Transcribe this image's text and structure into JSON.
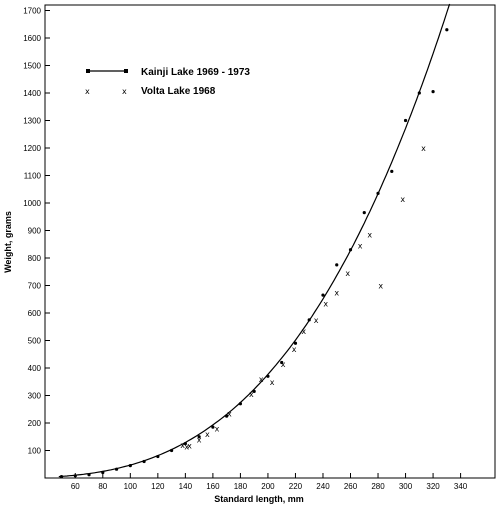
{
  "chart_data": {
    "type": "scatter",
    "title": "",
    "xlabel": "Standard length, mm",
    "ylabel": "Weight, grams",
    "xlim": [
      38,
      365
    ],
    "ylim": [
      0,
      1720
    ],
    "x_ticks": [
      60,
      80,
      100,
      120,
      140,
      160,
      180,
      200,
      220,
      240,
      260,
      280,
      300,
      320,
      340
    ],
    "y_ticks": [
      100,
      200,
      300,
      400,
      500,
      600,
      700,
      800,
      900,
      1000,
      1100,
      1200,
      1300,
      1400,
      1500,
      1600,
      1700
    ],
    "legend_position": "top-left",
    "series": [
      {
        "name": "Kainji Lake 1969 - 1973",
        "marker": "dot-with-fitted-curve",
        "points": [
          [
            50,
            5
          ],
          [
            60,
            8
          ],
          [
            70,
            12
          ],
          [
            80,
            20
          ],
          [
            90,
            32
          ],
          [
            100,
            45
          ],
          [
            110,
            60
          ],
          [
            120,
            78
          ],
          [
            130,
            100
          ],
          [
            140,
            125
          ],
          [
            150,
            150
          ],
          [
            160,
            185
          ],
          [
            170,
            225
          ],
          [
            180,
            270
          ],
          [
            190,
            315
          ],
          [
            200,
            370
          ],
          [
            210,
            420
          ],
          [
            220,
            490
          ],
          [
            230,
            575
          ],
          [
            240,
            665
          ],
          [
            250,
            775
          ],
          [
            260,
            830
          ],
          [
            270,
            965
          ],
          [
            280,
            1035
          ],
          [
            290,
            1115
          ],
          [
            300,
            1300
          ],
          [
            310,
            1400
          ],
          [
            320,
            1405
          ],
          [
            330,
            1630
          ]
        ]
      },
      {
        "name": "Volta Lake 1968",
        "marker": "x",
        "points": [
          [
            138,
            120
          ],
          [
            141,
            115
          ],
          [
            143,
            118
          ],
          [
            150,
            140
          ],
          [
            156,
            160
          ],
          [
            163,
            180
          ],
          [
            172,
            235
          ],
          [
            188,
            305
          ],
          [
            195,
            360
          ],
          [
            203,
            350
          ],
          [
            211,
            415
          ],
          [
            219,
            470
          ],
          [
            226,
            535
          ],
          [
            235,
            575
          ],
          [
            242,
            635
          ],
          [
            250,
            675
          ],
          [
            258,
            745
          ],
          [
            267,
            845
          ],
          [
            274,
            885
          ],
          [
            282,
            700
          ],
          [
            298,
            1015
          ],
          [
            313,
            1200
          ]
        ]
      }
    ],
    "fit_curve": {
      "a": 4.71e-05,
      "b": 3
    }
  }
}
